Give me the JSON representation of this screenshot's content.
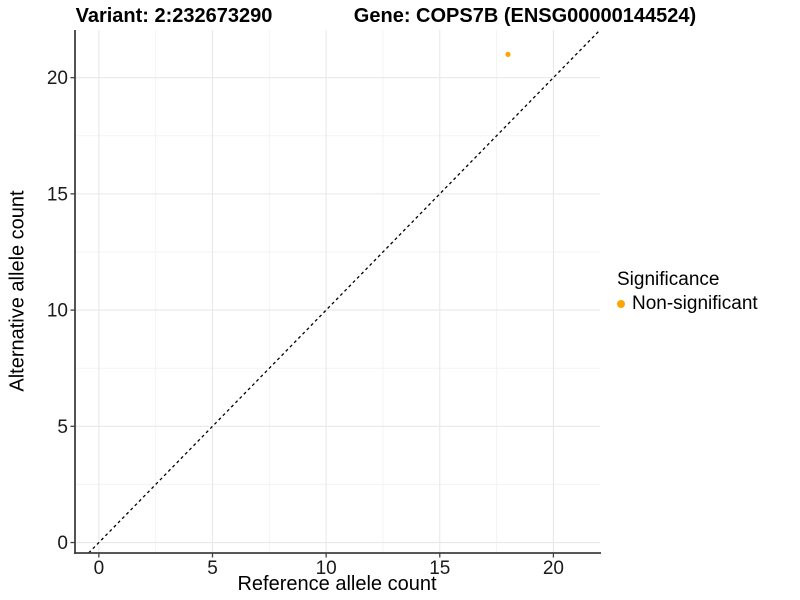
{
  "chart_data": {
    "type": "scatter",
    "title_left": "Variant: 2:232673290",
    "title_right": "Gene: COPS7B (ENSG00000144524)",
    "xlabel": "Reference allele count",
    "ylabel": "Alternative allele count",
    "xlim": [
      -1.05,
      22.05
    ],
    "ylim": [
      -0.45,
      22.05
    ],
    "x_ticks": [
      0,
      5,
      10,
      15,
      20
    ],
    "y_ticks": [
      0,
      5,
      10,
      15,
      20
    ],
    "x_minor_ticks": [
      2.5,
      7.5,
      12.5,
      17.5
    ],
    "y_minor_ticks": [
      2.5,
      7.5,
      12.5,
      17.5
    ],
    "grid": "major+minor",
    "reference_line": {
      "type": "identity",
      "style": "dashed",
      "color": "#000000"
    },
    "series": [
      {
        "name": "Non-significant",
        "color": "#FFA500",
        "points": [
          {
            "x": 18,
            "y": 21
          }
        ]
      }
    ],
    "legend": {
      "title": "Significance",
      "position": "right",
      "items": [
        {
          "label": "Non-significant",
          "color": "#FFA500"
        }
      ]
    },
    "colors": {
      "grid_major": "#E8E8E8",
      "grid_minor": "#F3F3F3",
      "axis_line": "#404040",
      "tick_text": "#1A1A1A",
      "title_text": "#000000"
    }
  }
}
